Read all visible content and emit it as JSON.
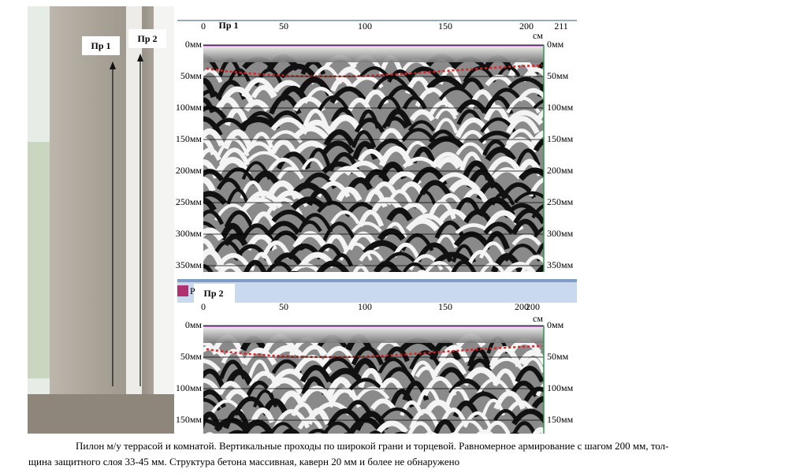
{
  "photo": {
    "labels": [
      "Пр 1",
      "Пр 2"
    ]
  },
  "scans": [
    {
      "label": "Пр 1",
      "top_ticks": [
        "0",
        "50",
        "100",
        "150",
        "200",
        "211"
      ],
      "unit": "см",
      "depth_left": [
        "0мм",
        "50мм",
        "100мм",
        "150мм",
        "200мм",
        "250мм",
        "300мм",
        "350мм"
      ],
      "depth_right": [
        "0мм",
        "50мм",
        "100мм",
        "150мм",
        "200мм",
        "250мм",
        "300мм",
        "350мм"
      ]
    },
    {
      "label": "Пр 2",
      "top_ticks": [
        "0",
        "50",
        "100",
        "150",
        "200",
        "200"
      ],
      "unit": "см",
      "depth_left": [
        "0мм",
        "50мм",
        "100мм",
        "150мм"
      ],
      "depth_right": [
        "0мм",
        "50мм",
        "100мм",
        "150мм"
      ]
    }
  ],
  "caption": [
    "Пилон м/у террасой и комнатой. Вертикальные проходы по широкой грани и торцевой. Равномерное армирование с шагом 200 мм, тол-",
    "щина защитного слоя 33-45 мм. Структура бетона массивная, каверн 20 мм и более не обнаружено"
  ]
}
